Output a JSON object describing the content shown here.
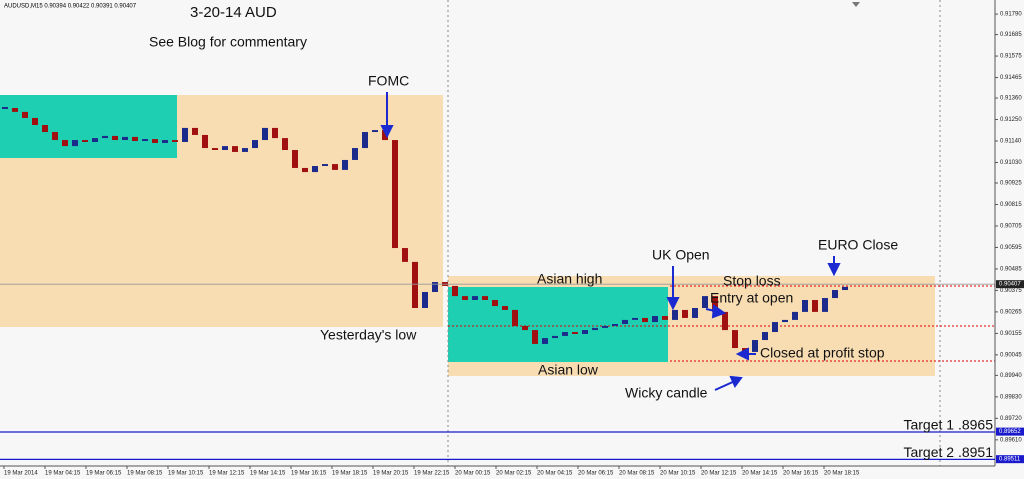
{
  "chart_data": {
    "type": "candlestick",
    "symbol_info": "AUDUSD,M15  0.90394 0.90422 0.90391 0.90407",
    "title": "3-20-14  AUD",
    "subtitle": "See Blog for commentary",
    "up_color": "#1c2a8c",
    "down_color": "#a01010",
    "closes": [
      0.91309,
      0.91289,
      0.91258,
      0.91222,
      0.91186,
      0.91145,
      0.91114,
      0.91145,
      0.91135,
      0.91155,
      0.91166,
      0.91145,
      0.91161,
      0.9114,
      0.9115,
      0.9113,
      0.91145,
      0.91135,
      0.91207,
      0.91171,
      0.91104,
      0.91094,
      0.91114,
      0.91084,
      0.91104,
      0.91145,
      0.91207,
      0.91155,
      0.91094,
      0.91002,
      0.90981,
      0.91012,
      0.91022,
      0.90992,
      0.91043,
      0.91104,
      0.91186,
      0.91196,
      0.91145,
      0.90592,
      0.90521,
      0.90285,
      0.90367,
      0.90418,
      0.90398,
      0.90346,
      0.90326,
      0.90346,
      0.90326,
      0.90295,
      0.90275,
      0.90193,
      0.90172,
      0.90101,
      0.90131,
      0.90142,
      0.90162,
      0.90152,
      0.90172,
      0.90183,
      0.90193,
      0.90203,
      0.90224,
      0.90234,
      0.90213,
      0.90244,
      0.90224,
      0.90275,
      0.90234,
      0.90285,
      0.90346,
      0.90265,
      0.90172,
      0.9008,
      0.9006,
      0.90121,
      0.90162,
      0.90213,
      0.90224,
      0.90265,
      0.90326,
      0.90265,
      0.90336,
      0.90377,
      0.90393
    ],
    "ylim": [
      0.89476,
      0.91862
    ],
    "yticks": [
      {
        "value": 0.9179,
        "label": "0.91790"
      },
      0.91685,
      0.91575,
      0.91465,
      {
        "value": 0.9136,
        "label": "0.91360"
      },
      {
        "value": 0.9125,
        "label": "0.91250"
      },
      {
        "value": 0.9114,
        "label": "0.91140"
      },
      {
        "value": 0.9103,
        "label": "0.91030"
      },
      0.90925,
      0.90815,
      0.90705,
      0.90595,
      0.90485,
      0.90375,
      0.90265,
      0.90155,
      0.90045,
      {
        "value": 0.8994,
        "label": "0.89940"
      },
      {
        "value": 0.8983,
        "label": "0.89830"
      },
      {
        "value": 0.8972,
        "label": "0.89720"
      },
      {
        "value": 0.8961,
        "label": "0.89610"
      }
    ],
    "x_labels": [
      "19 Mar 2014",
      "19 Mar 04:15",
      "19 Mar 06:15",
      "19 Mar 08:15",
      "19 Mar 10:15",
      "19 Mar 12:15",
      "19 Mar 14:15",
      "19 Mar 16:15",
      "19 Mar 18:15",
      "19 Mar 20:15",
      "19 Mar 22:15",
      "20 Mar 00:15",
      "20 Mar 02:15",
      "20 Mar 04:15",
      "20 Mar 06:15",
      "20 Mar 08:15",
      "20 Mar 10:15",
      "20 Mar 12:15",
      "20 Mar 14:15",
      "20 Mar 16:15",
      "20 Mar 18:15"
    ],
    "current_price": 0.90407,
    "target_lines": [
      {
        "label": "Target 1  .8965",
        "value": 0.8965,
        "axis_label": "0.89652",
        "axis_value": 0.89652
      },
      {
        "label": "Target 2  .8951",
        "value": 0.8951,
        "axis_label": "0.89511",
        "axis_value": 0.89511
      }
    ],
    "annotations": [
      "FOMC",
      "Yesterday's low",
      "Asian high",
      "Asian low",
      "UK Open",
      "Stop loss",
      "Entry at open",
      "Closed at profit stop",
      "Wicky candle",
      "EURO Close"
    ]
  }
}
